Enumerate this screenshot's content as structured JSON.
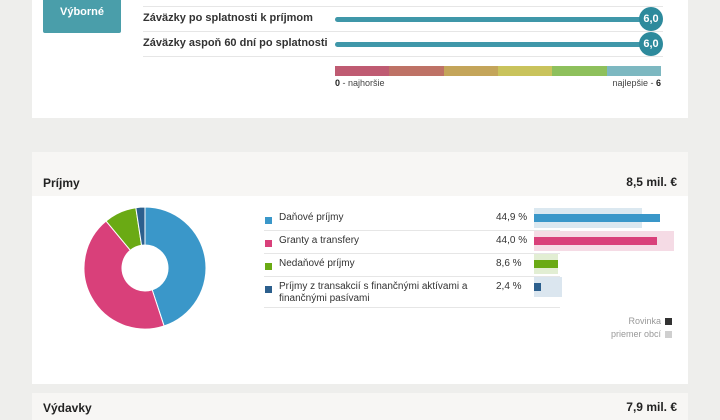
{
  "ratings": {
    "button_label": "Výborné",
    "rows": [
      {
        "label": "Záväzky po splatnosti k príjmom",
        "value": "6,0"
      },
      {
        "label": "Záväzky aspoň 60 dní po splatnosti",
        "value": "6,0"
      }
    ],
    "scale": {
      "colors": [
        "#bf5b72",
        "#be7266",
        "#c4a55a",
        "#c9c35c",
        "#8ec05c",
        "#7db8c1"
      ],
      "min_num": "0",
      "min_label": " - najhoršie",
      "max_label": "najlepšie - ",
      "max_num": "6"
    }
  },
  "income": {
    "title": "Príjmy",
    "total": "8,5 mil. €",
    "items": [
      {
        "label": "Daňové príjmy",
        "percent": "44,9 %",
        "value": 44.9,
        "avg": 38.5,
        "color": "#3a97c9",
        "avg_color": "#dbe8f0"
      },
      {
        "label": "Granty a transfery",
        "percent": "44,0 %",
        "value": 44.0,
        "avg": 50.0,
        "color": "#d9407a",
        "avg_color": "#f5dbe5"
      },
      {
        "label": "Nedaňové príjmy",
        "percent": "8,6 %",
        "value": 8.6,
        "avg": 8.6,
        "color": "#6aaa14",
        "avg_color": "#e2eed3"
      },
      {
        "label": "Príjmy z transakcií s finančnými aktívami a finančnými pasívami",
        "percent": "2,4 %",
        "value": 2.4,
        "avg": 10.0,
        "color": "#2c5f8d",
        "avg_color": "#dbe6ef"
      }
    ],
    "note_municipality": "Rovinka",
    "note_average": "priemer obcí",
    "note_colors": {
      "municipality": "#333333",
      "average": "#cfcfcf"
    }
  },
  "expenses": {
    "title": "Výdavky",
    "total": "7,9 mil. €"
  }
}
